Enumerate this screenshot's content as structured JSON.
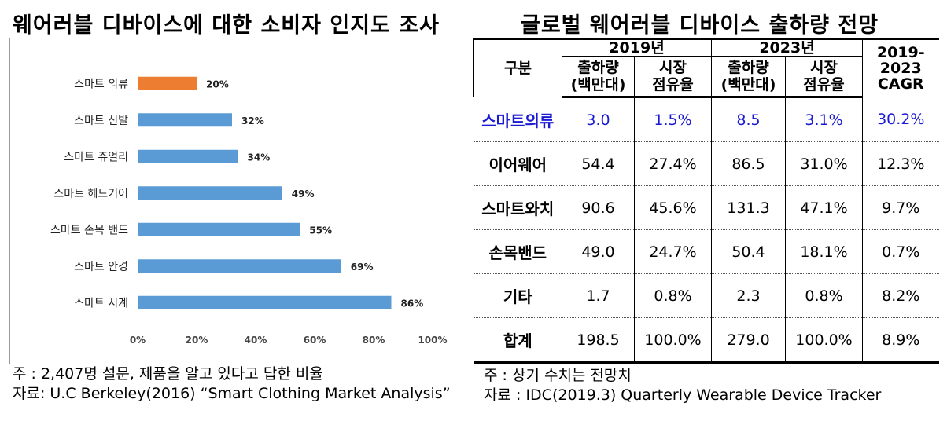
{
  "left_title": "웨어러블 디바이스에 대한 소비자 인지도 조사",
  "right_title": "글로벌 웨어러블 디바이스 출하량 전망",
  "chart_data": {
    "type": "bar",
    "orientation": "horizontal",
    "categories": [
      "스마트 의류",
      "스마트 신발",
      "스마트 쥬얼리",
      "스마트 헤드기어",
      "스마트 손목 밴드",
      "스마트 안경",
      "스마트 시계"
    ],
    "values": [
      20,
      32,
      34,
      49,
      55,
      69,
      86
    ],
    "value_labels": [
      "20%",
      "32%",
      "34%",
      "49%",
      "55%",
      "69%",
      "86%"
    ],
    "colors": [
      "#ED7D31",
      "#5B9BD5",
      "#5B9BD5",
      "#5B9BD5",
      "#5B9BD5",
      "#5B9BD5",
      "#5B9BD5"
    ],
    "xlim": [
      0,
      100
    ],
    "x_ticks": [
      "0%",
      "20%",
      "40%",
      "60%",
      "80%",
      "100%"
    ],
    "grid": false,
    "legend": "none"
  },
  "left_notes": {
    "note": "주  : 2,407명 설문, 제품을 알고 있다고 답한 비율",
    "source": "자료: U.C Berkeley(2016) “Smart Clothing Market Analysis”"
  },
  "table": {
    "corner": "구분",
    "groups": [
      "2019년",
      "2023년"
    ],
    "cagr_header": "2019-\n2023\nCAGR",
    "sub_headers": [
      "출하량\n(백만대)",
      "시장\n점유율",
      "출하량\n(백만대)",
      "시장\n점유율"
    ],
    "highlight_color": "#1a1ad4",
    "rows": [
      {
        "name": "스마트의류",
        "cells": [
          "3.0",
          "1.5%",
          "8.5",
          "3.1%",
          "30.2%"
        ]
      },
      {
        "name": "이어웨어",
        "cells": [
          "54.4",
          "27.4%",
          "86.5",
          "31.0%",
          "12.3%"
        ]
      },
      {
        "name": "스마트와치",
        "cells": [
          "90.6",
          "45.6%",
          "131.3",
          "47.1%",
          "9.7%"
        ]
      },
      {
        "name": "손목밴드",
        "cells": [
          "49.0",
          "24.7%",
          "50.4",
          "18.1%",
          "0.7%"
        ]
      },
      {
        "name": "기타",
        "cells": [
          "1.7",
          "0.8%",
          "2.3",
          "0.8%",
          "8.2%"
        ]
      },
      {
        "name": "합계",
        "cells": [
          "198.5",
          "100.0%",
          "279.0",
          "100.0%",
          "8.9%"
        ]
      }
    ]
  },
  "right_notes": {
    "note": "주   : 상기 수치는 전망치",
    "source": "자료 : IDC(2019.3) Quarterly Wearable Device Tracker"
  }
}
